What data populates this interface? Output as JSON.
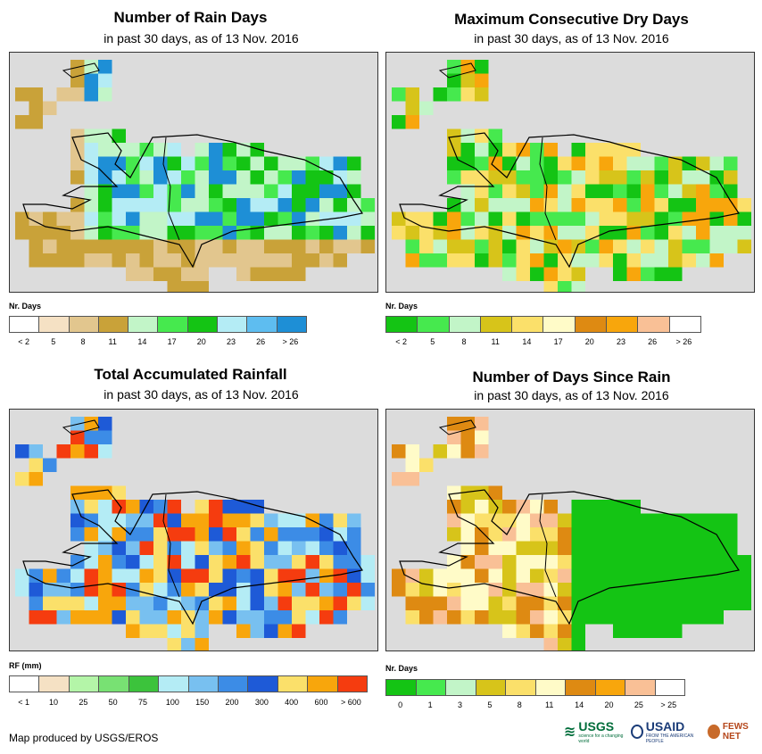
{
  "panels": [
    {
      "title": "Number of Rain Days",
      "subtitle": "in past 30 days, as of 13 Nov. 2016",
      "legend_title": "Nr. Days",
      "legend_colors": [
        "#ffffff",
        "#f5e1c4",
        "#e2c68e",
        "#c9a239",
        "#c2f5c8",
        "#46e94e",
        "#14c414",
        "#b4ecf5",
        "#5ebdf0",
        "#1e8fd6"
      ],
      "legend_labels": [
        "< 2",
        "5",
        "8",
        "11",
        "14",
        "17",
        "20",
        "23",
        "26",
        "> 26"
      ],
      "map_color_keys": [
        "#c9a239",
        "#e2c68e",
        "#46e94e",
        "#14c414",
        "#c2f5c8",
        "#b4ecf5",
        "#1e8fd6"
      ]
    },
    {
      "title": "Maximum Consecutive Dry Days",
      "subtitle": "in past 30 days, as of 13 Nov. 2016",
      "legend_title": "Nr. Days",
      "legend_colors": [
        "#14c414",
        "#46e94e",
        "#c2f5c8",
        "#d7c41a",
        "#fbe06a",
        "#fffbc8",
        "#de8a12",
        "#f8a60c",
        "#f9c096",
        "#ffffff"
      ],
      "legend_labels": [
        "< 2",
        "5",
        "8",
        "11",
        "14",
        "17",
        "20",
        "23",
        "26",
        "> 26"
      ],
      "map_color_keys": [
        "#46e94e",
        "#c2f5c8",
        "#d7c41a",
        "#fbe06a",
        "#f8a60c",
        "#14c414"
      ]
    },
    {
      "title": "Total Accumulated Rainfall",
      "subtitle": "in past 30 days, as of 13 Nov. 2016",
      "legend_title": "RF (mm)",
      "legend_colors": [
        "#ffffff",
        "#f5e1c4",
        "#b4f5a8",
        "#78e173",
        "#3cc33c",
        "#b4ecf5",
        "#78c0f0",
        "#3c8ce6",
        "#1e5ad7",
        "#fbe06a",
        "#f8a60c",
        "#f53c0f"
      ],
      "legend_labels": [
        "< 1",
        "10",
        "25",
        "50",
        "75",
        "100",
        "150",
        "200",
        "300",
        "400",
        "600",
        "> 600"
      ],
      "map_color_keys": [
        "#1e5ad7",
        "#3c8ce6",
        "#78c0f0",
        "#b4ecf5",
        "#fbe06a",
        "#f8a60c",
        "#f53c0f"
      ]
    },
    {
      "title": "Number of Days Since Rain",
      "subtitle": "in past 30 days, as of 13 Nov. 2016",
      "legend_title": "Nr. Days",
      "legend_colors": [
        "#14c414",
        "#46e94e",
        "#c2f5c8",
        "#d7c41a",
        "#fbe06a",
        "#fffbc8",
        "#de8a12",
        "#f8a60c",
        "#f9c096",
        "#ffffff"
      ],
      "legend_labels": [
        "0",
        "1",
        "3",
        "5",
        "8",
        "11",
        "14",
        "20",
        "25",
        "> 25"
      ],
      "map_color_keys": [
        "#14c414",
        "#fbe06a",
        "#d7c41a",
        "#de8a12",
        "#fffbc8",
        "#f9c096"
      ]
    }
  ],
  "footer": "Map produced by USGS/EROS",
  "logos": {
    "usgs": "USGS",
    "usgs_tagline": "science for a changing world",
    "usaid": "USAID",
    "usaid_tagline": "FROM THE AMERICAN PEOPLE",
    "fews": "FEWS NET"
  }
}
